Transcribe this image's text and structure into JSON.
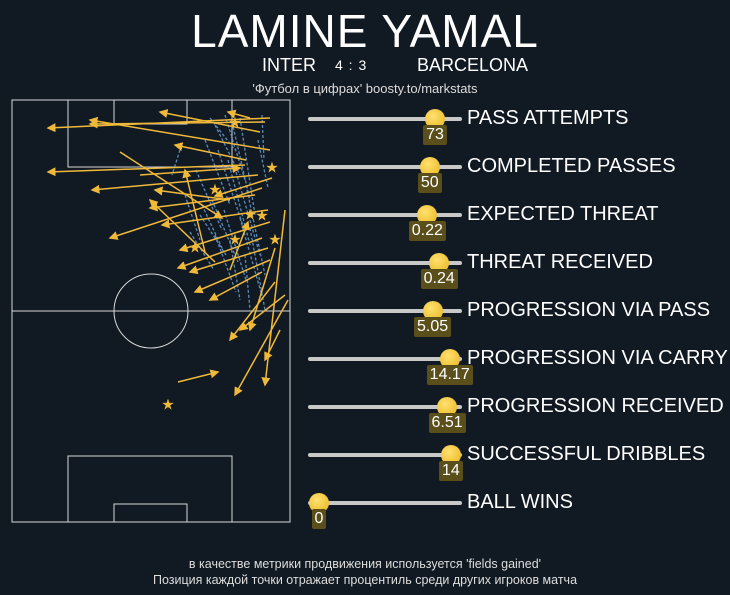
{
  "header": {
    "title": "LAMINE YAMAL",
    "home": "INTER",
    "score": "4 : 3",
    "away": "BARCELONA",
    "source": "'Футбол в цифрах' boosty.to/markstats"
  },
  "colors": {
    "background": "#111a22",
    "pitch_lines": "#d8d8d8",
    "pass": "#f0b93a",
    "carry": "#5b8ab8",
    "bar": "#c8c8c8",
    "marker": "#f0c030",
    "value_box": "#5a4e1a"
  },
  "chart_data": {
    "type": "percentile-lollipop",
    "scale": [
      0,
      100
    ],
    "metrics": [
      {
        "label": "PASS ATTEMPTS",
        "value": "73",
        "percentile": 88
      },
      {
        "label": "COMPLETED PASSES",
        "value": "50",
        "percentile": 84
      },
      {
        "label": "EXPECTED THREAT",
        "value": "0.22",
        "percentile": 82
      },
      {
        "label": "THREAT RECEIVED",
        "value": "0.24",
        "percentile": 91
      },
      {
        "label": "PROGRESSION VIA PASS",
        "value": "5.05",
        "percentile": 86
      },
      {
        "label": "PROGRESSION VIA CARRY",
        "value": "14.17",
        "percentile": 99
      },
      {
        "label": "PROGRESSION RECEIVED",
        "value": "6.51",
        "percentile": 97
      },
      {
        "label": "SUCCESSFUL DRIBBLES",
        "value": "14",
        "percentile": 100
      },
      {
        "label": "BALL WINS",
        "value": "0",
        "percentile": 0
      }
    ]
  },
  "footer": {
    "line1": "в качестве метрики продвижения используется 'fields gained'",
    "line2": "Позиция каждой точки отражает процентиль среди других игроков матча"
  }
}
